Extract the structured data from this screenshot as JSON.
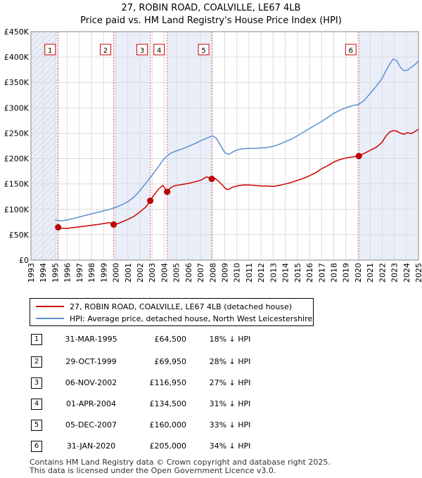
{
  "chart_data": {
    "type": "line",
    "title": "27, ROBIN ROAD, COALVILLE, LE67 4LB",
    "subtitle": "Price paid vs. HM Land Registry's House Price Index (HPI)",
    "xlim": [
      1993,
      2025
    ],
    "ylim": [
      0,
      450000
    ],
    "y_ticks": [
      {
        "value": 0,
        "label": "£0"
      },
      {
        "value": 50000,
        "label": "£50K"
      },
      {
        "value": 100000,
        "label": "£100K"
      },
      {
        "value": 150000,
        "label": "£150K"
      },
      {
        "value": 200000,
        "label": "£200K"
      },
      {
        "value": 250000,
        "label": "£250K"
      },
      {
        "value": 300000,
        "label": "£300K"
      },
      {
        "value": 350000,
        "label": "£350K"
      },
      {
        "value": 400000,
        "label": "£400K"
      },
      {
        "value": 450000,
        "label": "£450K"
      }
    ],
    "x_ticks": [
      "1993",
      "1994",
      "1995",
      "1996",
      "1997",
      "1998",
      "1999",
      "2000",
      "2001",
      "2002",
      "2003",
      "2004",
      "2005",
      "2006",
      "2007",
      "2008",
      "2009",
      "2010",
      "2011",
      "2012",
      "2013",
      "2014",
      "2015",
      "2016",
      "2017",
      "2018",
      "2019",
      "2020",
      "2021",
      "2022",
      "2023",
      "2024",
      "2025"
    ],
    "grid": true,
    "series": [
      {
        "name": "27, ROBIN ROAD, COALVILLE, LE67 4LB (detached house)",
        "color": "#cc0000",
        "x": [
          1995.25,
          1995.5,
          1996,
          1996.5,
          1997,
          1997.5,
          1998,
          1998.5,
          1999,
          1999.5,
          1999.83,
          2000.2,
          2000.6,
          2001,
          2001.5,
          2002,
          2002.5,
          2002.85,
          2003.1,
          2003.5,
          2003.9,
          2004.25,
          2004.5,
          2004.8,
          2005,
          2005.5,
          2006,
          2006.5,
          2007,
          2007.5,
          2007.93,
          2008.2,
          2008.5,
          2008.8,
          2009.1,
          2009.3,
          2009.6,
          2010,
          2010.5,
          2011,
          2011.5,
          2012,
          2012.5,
          2013,
          2013.5,
          2014,
          2014.5,
          2015,
          2015.5,
          2016,
          2016.5,
          2017,
          2017.5,
          2018,
          2018.5,
          2019,
          2019.5,
          2020.08,
          2020.5,
          2021,
          2021.5,
          2022,
          2022.3,
          2022.6,
          2022.9,
          2023.2,
          2023.5,
          2023.8,
          2024.1,
          2024.4,
          2024.7,
          2025
        ],
        "values": [
          64500,
          63000,
          62500,
          64000,
          65500,
          67000,
          68500,
          70000,
          72000,
          74000,
          69950,
          72000,
          76000,
          80000,
          86000,
          95000,
          105000,
          116950,
          126000,
          139000,
          147000,
          134500,
          142000,
          146000,
          147000,
          149000,
          151000,
          154000,
          157000,
          164000,
          160000,
          161000,
          155000,
          148000,
          140000,
          139000,
          143000,
          146000,
          148000,
          148000,
          147000,
          146000,
          146000,
          145000,
          147000,
          150000,
          153000,
          157000,
          161000,
          166000,
          172000,
          180000,
          186000,
          193000,
          198000,
          201000,
          203000,
          205000,
          210000,
          216000,
          222000,
          232000,
          244000,
          252000,
          255000,
          254000,
          250000,
          248000,
          251000,
          249000,
          253000,
          258000
        ]
      },
      {
        "name": "HPI: Average price, detached house, North West Leicestershire",
        "color": "#5b8fd6",
        "x": [
          1995,
          1995.5,
          1996,
          1996.5,
          1997,
          1997.5,
          1998,
          1998.5,
          1999,
          1999.5,
          2000,
          2000.5,
          2001,
          2001.5,
          2002,
          2002.5,
          2003,
          2003.5,
          2004,
          2004.5,
          2005,
          2005.5,
          2006,
          2006.5,
          2007,
          2007.5,
          2008,
          2008.3,
          2008.6,
          2009,
          2009.3,
          2009.6,
          2010,
          2010.5,
          2011,
          2011.5,
          2012,
          2012.5,
          2013,
          2013.5,
          2014,
          2014.5,
          2015,
          2015.5,
          2016,
          2016.5,
          2017,
          2017.5,
          2018,
          2018.5,
          2019,
          2019.5,
          2020,
          2020.5,
          2021,
          2021.5,
          2022,
          2022.3,
          2022.6,
          2022.9,
          2023.2,
          2023.5,
          2023.8,
          2024.1,
          2024.4,
          2024.7,
          2025
        ],
        "values": [
          79000,
          77000,
          79000,
          82000,
          85000,
          88000,
          91000,
          94000,
          97000,
          100000,
          104000,
          109000,
          115000,
          124000,
          137000,
          152000,
          167000,
          183000,
          200000,
          210000,
          215000,
          219000,
          224000,
          229000,
          235000,
          240000,
          245000,
          240000,
          228000,
          212000,
          208000,
          212000,
          217000,
          219000,
          220000,
          220000,
          221000,
          222000,
          224000,
          228000,
          233000,
          238000,
          245000,
          252000,
          259000,
          266000,
          273000,
          281000,
          289000,
          295000,
          300000,
          304000,
          306000,
          314000,
          328000,
          342000,
          358000,
          372000,
          385000,
          396000,
          393000,
          380000,
          373000,
          374000,
          380000,
          385000,
          392000
        ]
      }
    ],
    "transactions": [
      {
        "id": "1",
        "x": 1995.25,
        "value": 64500
      },
      {
        "id": "2",
        "x": 1999.83,
        "value": 69950
      },
      {
        "id": "3",
        "x": 2002.85,
        "value": 116950
      },
      {
        "id": "4",
        "x": 2004.25,
        "value": 134500
      },
      {
        "id": "5",
        "x": 2007.93,
        "value": 160000
      },
      {
        "id": "6",
        "x": 2020.08,
        "value": 205000
      }
    ],
    "shaded_periods": [
      [
        1993,
        1995.25
      ],
      [
        1999.83,
        2002.85
      ],
      [
        2004.25,
        2007.93
      ],
      [
        2020.08,
        2025
      ]
    ]
  },
  "legend": {
    "property_label": "27, ROBIN ROAD, COALVILLE, LE67 4LB (detached house)",
    "hpi_label": "HPI: Average price, detached house, North West Leicestershire",
    "property_color": "#cc0000",
    "hpi_color": "#5b8fd6"
  },
  "table": [
    {
      "num": "1",
      "date": "31-MAR-1995",
      "price": "£64,500",
      "hpi": "18% ↓ HPI"
    },
    {
      "num": "2",
      "date": "29-OCT-1999",
      "price": "£69,950",
      "hpi": "28% ↓ HPI"
    },
    {
      "num": "3",
      "date": "06-NOV-2002",
      "price": "£116,950",
      "hpi": "27% ↓ HPI"
    },
    {
      "num": "4",
      "date": "01-APR-2004",
      "price": "£134,500",
      "hpi": "31% ↓ HPI"
    },
    {
      "num": "5",
      "date": "05-DEC-2007",
      "price": "£160,000",
      "hpi": "33% ↓ HPI"
    },
    {
      "num": "6",
      "date": "31-JAN-2020",
      "price": "£205,000",
      "hpi": "34% ↓ HPI"
    }
  ],
  "footer": {
    "line1": "Contains HM Land Registry data © Crown copyright and database right 2025.",
    "line2": "This data is licensed under the Open Government Licence v3.0."
  }
}
